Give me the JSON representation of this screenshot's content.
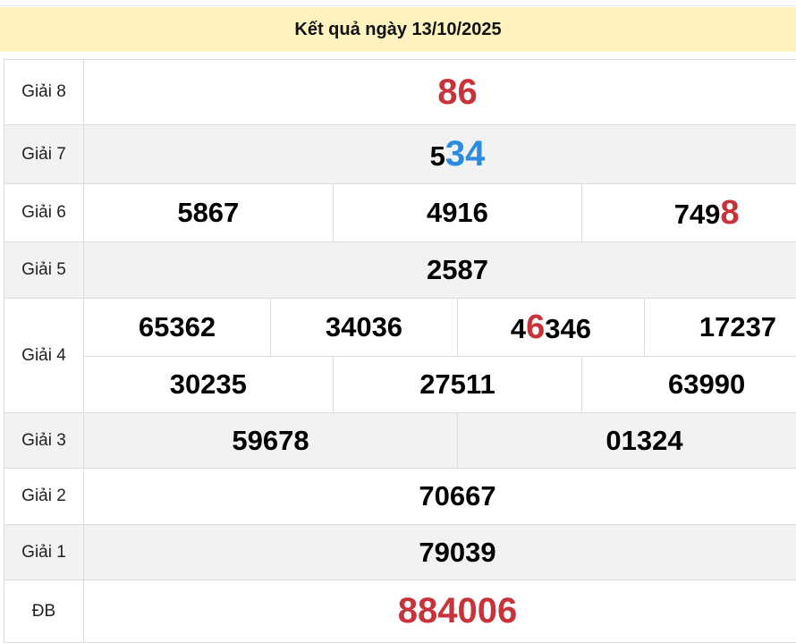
{
  "title": "Kết quả ngày 13/10/2025",
  "colors": {
    "header_bg": "#fff2c1",
    "red": "#c8323a",
    "blue": "#2a8be0",
    "alt_row": "#f2f2f2"
  },
  "rows": {
    "g8": {
      "label": "Giải 8",
      "value": "86"
    },
    "g7": {
      "label": "Giải 7",
      "prefix": "5",
      "hl": "34"
    },
    "g6": {
      "label": "Giải 6",
      "values": [
        "5867",
        "4916"
      ],
      "last_prefix": "749",
      "last_hl": "8"
    },
    "g5": {
      "label": "Giải 5",
      "value": "2587"
    },
    "g4": {
      "label": "Giải 4",
      "values": [
        "65362",
        "34036",
        "17237",
        "30235",
        "27511",
        "63990"
      ],
      "hl_prefix": "4",
      "hl_digit": "6",
      "hl_suffix": "346"
    },
    "g3": {
      "label": "Giải 3",
      "values": [
        "59678",
        "01324"
      ]
    },
    "g2": {
      "label": "Giải 2",
      "value": "70667"
    },
    "g1": {
      "label": "Giải 1",
      "value": "79039"
    },
    "db": {
      "label": "ĐB",
      "value": "884006"
    }
  }
}
